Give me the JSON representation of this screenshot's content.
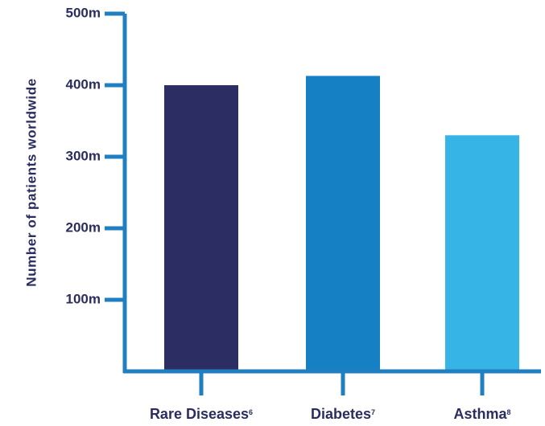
{
  "chart_data": {
    "type": "bar",
    "categories": [
      "Rare Diseases",
      "Diabetes",
      "Asthma"
    ],
    "category_superscripts": [
      "6",
      "7",
      "8"
    ],
    "values": [
      400,
      413,
      330
    ],
    "ylabel": "Number of patients worldwide",
    "xlabel": "",
    "ylim": [
      0,
      500
    ],
    "yticks": [
      100,
      200,
      300,
      400,
      500
    ],
    "ytick_labels": [
      "100m",
      "200m",
      "300m",
      "400m",
      "500m"
    ],
    "colors": [
      "#2b2d63",
      "#1580c4",
      "#36b4e6"
    ],
    "axis_color": "#1f7fc1",
    "grid": false
  }
}
